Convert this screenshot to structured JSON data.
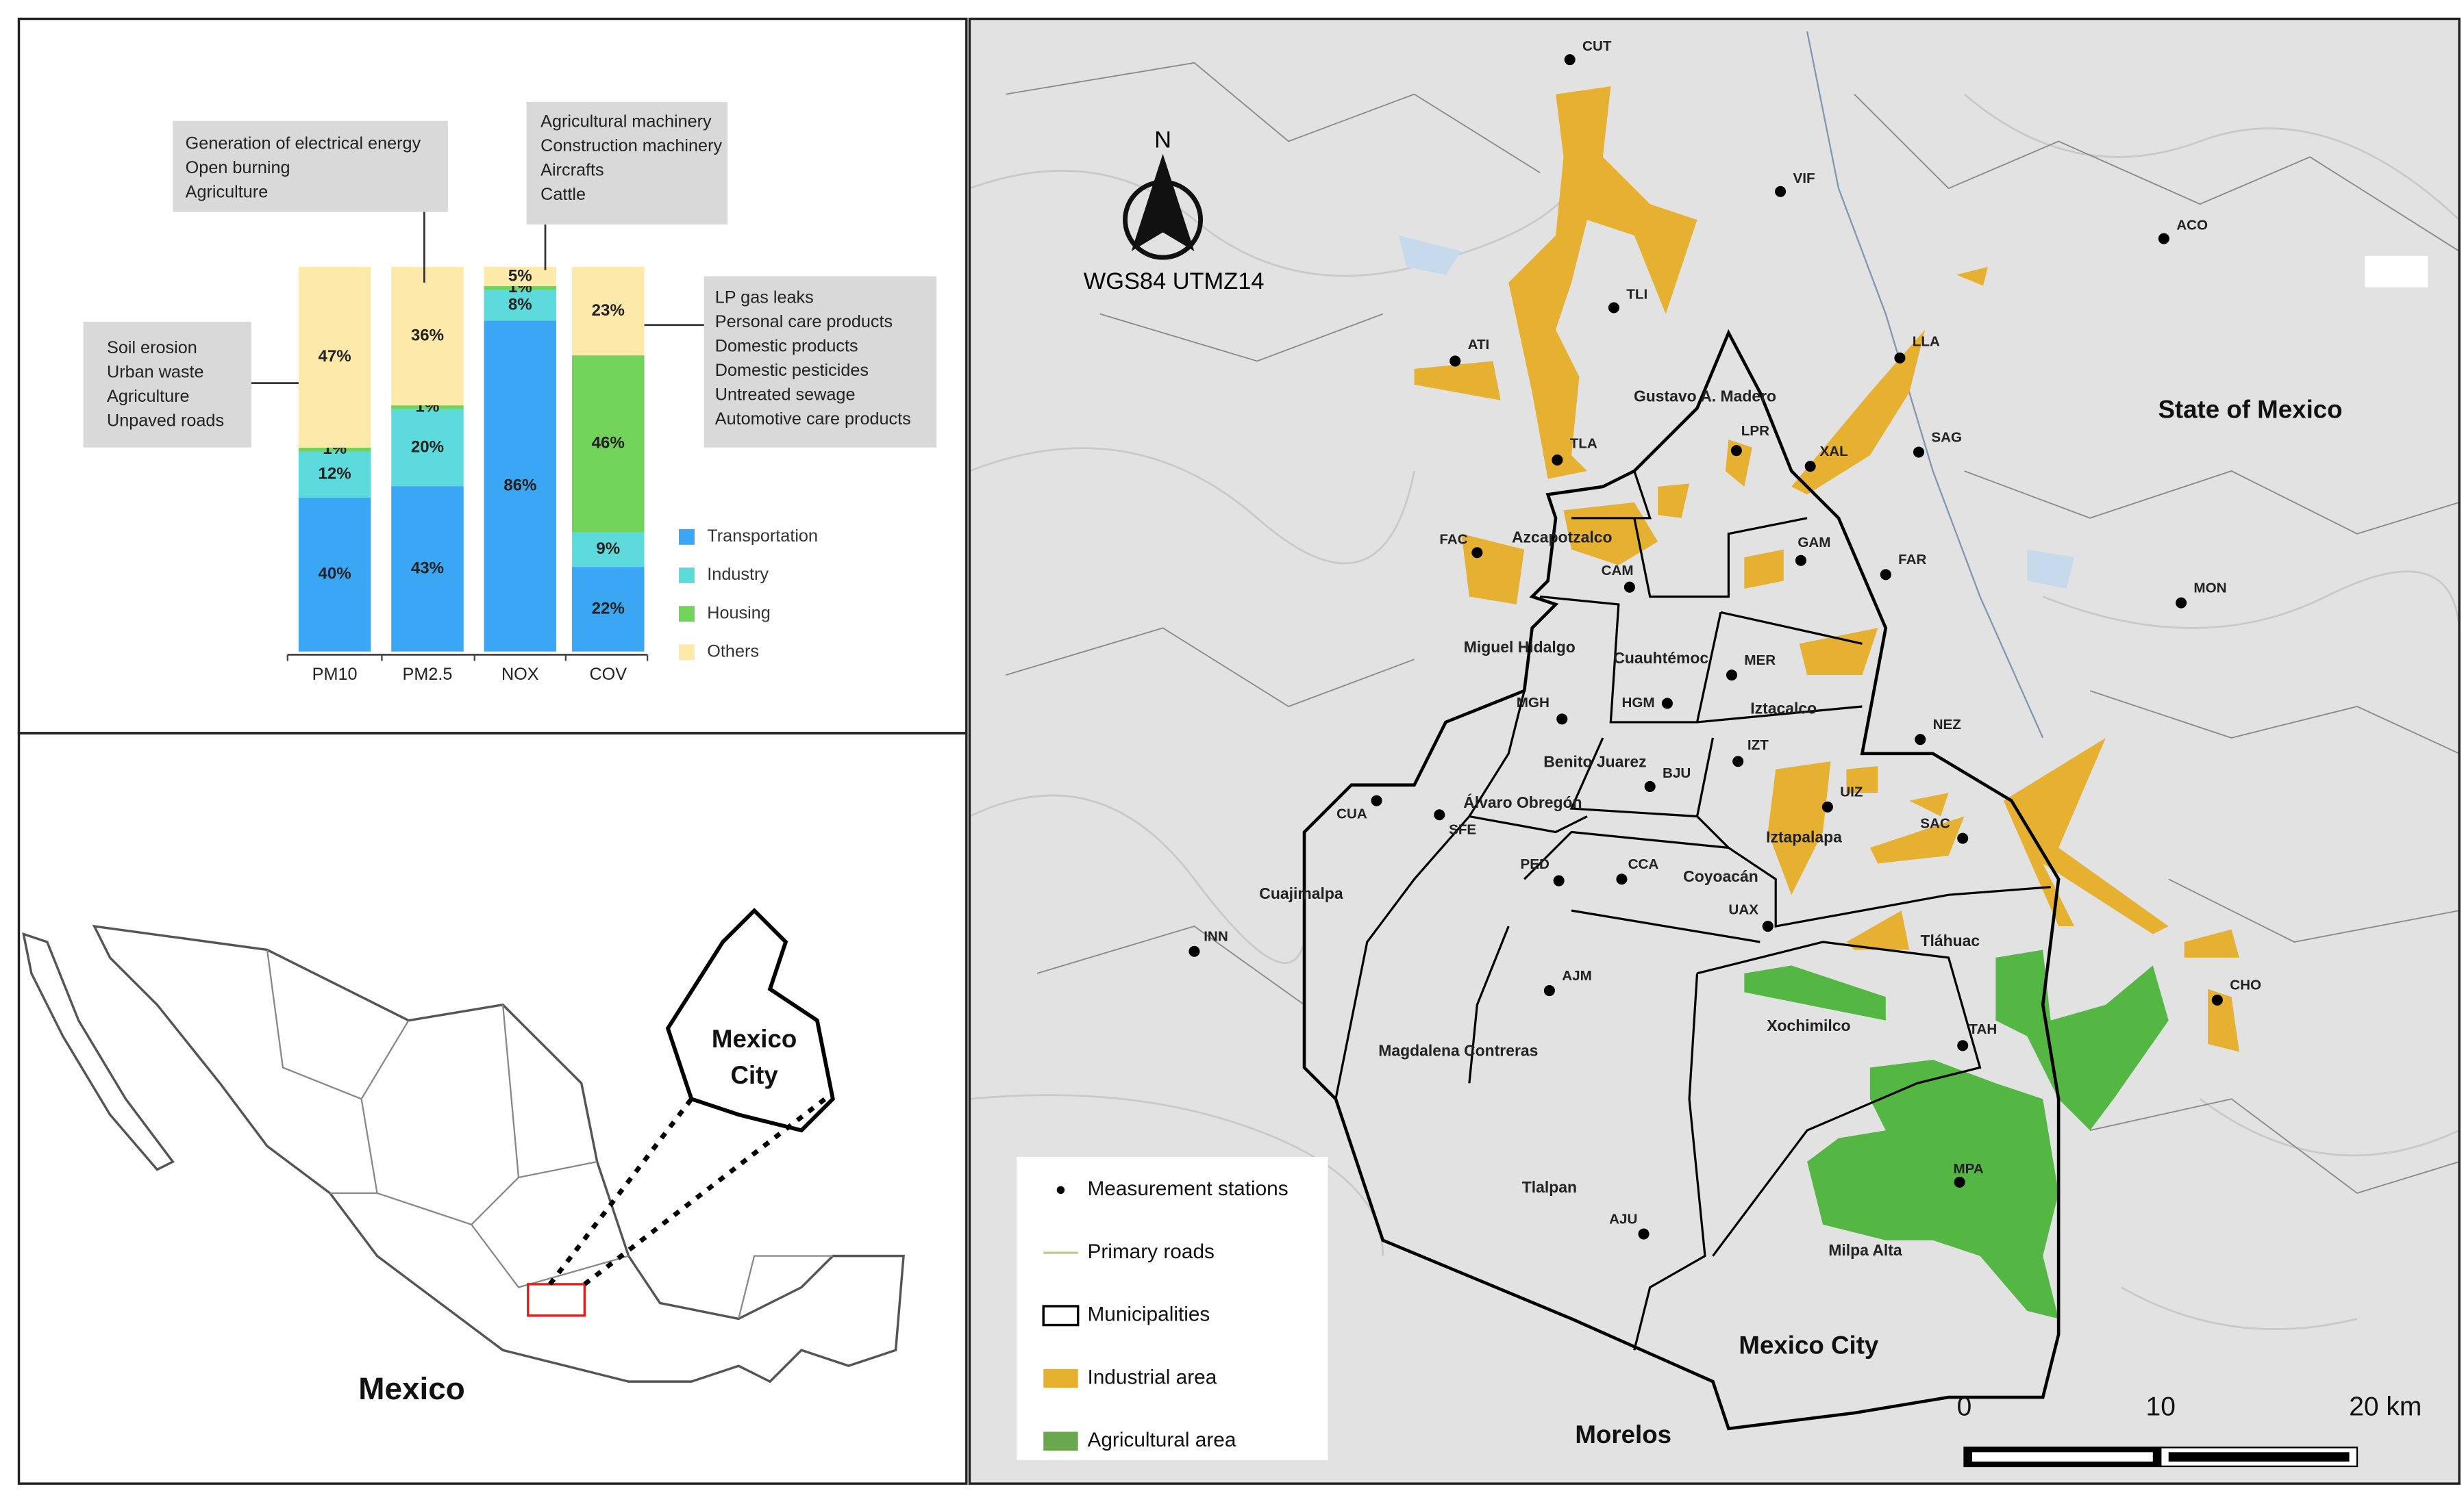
{
  "chart_data": {
    "type": "bar",
    "stacked": true,
    "categories": [
      "PM10",
      "PM2.5",
      "NOX",
      "COV"
    ],
    "series": [
      {
        "name": "Transportation",
        "color": "#3ba7f4",
        "values": [
          40,
          43,
          86,
          22
        ],
        "value_labels": [
          "40%",
          "43%",
          "86%",
          "22%"
        ]
      },
      {
        "name": "Industry",
        "color": "#5ddbdc",
        "values": [
          12,
          20,
          8,
          9
        ],
        "value_labels": [
          "12%",
          "20%",
          "8%",
          "9%"
        ]
      },
      {
        "name": "Housing",
        "color": "#72d35a",
        "values": [
          1,
          1,
          1,
          46
        ],
        "value_labels": [
          "1%",
          "1%",
          "1%",
          "46%"
        ]
      },
      {
        "name": "Others",
        "color": "#fde9a9",
        "values": [
          47,
          36,
          5,
          23
        ],
        "value_labels": [
          "47%",
          "36%",
          "5%",
          "23%"
        ]
      }
    ],
    "ylim": [
      0,
      100
    ],
    "annotations": [
      [
        "Soil erosion",
        "Urban waste",
        "Agriculture",
        "Unpaved roads"
      ],
      [
        "Generation of electrical energy",
        "Open burning",
        "Agriculture"
      ],
      [
        "Agricultural machinery",
        "Construction machinery",
        "Aircrafts",
        "Cattle"
      ],
      [
        "LP gas leaks",
        "Personal care products",
        "Domestic products",
        "Domestic pesticides",
        "Untreated sewage",
        "Automotive care products"
      ]
    ]
  },
  "map": {
    "north": "N",
    "crs": "WGS84 UTMZ14",
    "regions": [
      "State of Mexico",
      "Mexico City",
      "Morelos"
    ],
    "stations": [
      "CUT",
      "VIF",
      "ACO",
      "TLI",
      "ATI",
      "LLA",
      "TLA",
      "LPR",
      "XAL",
      "SAG",
      "FAC",
      "CAM",
      "GAM",
      "FAR",
      "MON",
      "HGM",
      "MER",
      "MGH",
      "IZT",
      "NEZ",
      "BJU",
      "UIZ",
      "SAC",
      "CUA",
      "SFE",
      "PED",
      "CCA",
      "UAX",
      "INN",
      "AJM",
      "CHO",
      "TAH",
      "MPA",
      "AJU"
    ],
    "municipalities": [
      "Gustavo A. Madero",
      "Azcapotzalco",
      "Miguel Hidalgo",
      "Cuauhtémoc",
      "Iztacalco",
      "Benito Juarez",
      "Álvaro Obregón",
      "Iztapalapa",
      "Coyoacán",
      "Cuajimalpa",
      "Tláhuac",
      "Xochimilco",
      "Magdalena Contreras",
      "Tlalpan",
      "Milpa Alta"
    ],
    "legend": [
      "Measurement stations",
      "Primary roads",
      "Municipalities",
      "Industrial area",
      "Agricultural area"
    ],
    "scale_labels": [
      "0",
      "10",
      "20 km"
    ]
  },
  "inset": {
    "country": "Mexico",
    "city": [
      "Mexico",
      "City"
    ]
  }
}
